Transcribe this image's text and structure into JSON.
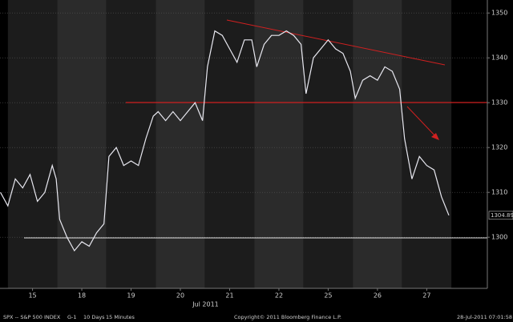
{
  "chart_data": {
    "type": "line",
    "x": [
      -0.15,
      0.0,
      0.15,
      0.3,
      0.45,
      0.6,
      0.75,
      0.9,
      0.98,
      1.05,
      1.2,
      1.35,
      1.5,
      1.65,
      1.8,
      1.95,
      2.05,
      2.2,
      2.35,
      2.5,
      2.65,
      2.8,
      2.95,
      3.05,
      3.2,
      3.35,
      3.5,
      3.65,
      3.8,
      3.95,
      4.05,
      4.2,
      4.35,
      4.5,
      4.65,
      4.8,
      4.95,
      5.05,
      5.2,
      5.35,
      5.5,
      5.65,
      5.8,
      5.95,
      6.05,
      6.2,
      6.35,
      6.5,
      6.65,
      6.8,
      6.95,
      7.05,
      7.2,
      7.35,
      7.5,
      7.65,
      7.8,
      7.95,
      8.05,
      8.2,
      8.35,
      8.5,
      8.65,
      8.8,
      8.95
    ],
    "series": [
      {
        "name": "SPX",
        "color": "#e8e8f0",
        "values": [
          1310,
          1307,
          1313,
          1311,
          1314,
          1308,
          1310,
          1316,
          1313,
          1304,
          1300,
          1297,
          1299,
          1298,
          1301,
          1303,
          1318,
          1320,
          1316,
          1317,
          1316,
          1322,
          1327,
          1328,
          1326,
          1328,
          1326,
          1328,
          1330,
          1326,
          1338,
          1346,
          1345,
          1342,
          1339,
          1344,
          1344,
          1338,
          1343,
          1345,
          1345,
          1346,
          1345,
          1343,
          1332,
          1340,
          1342,
          1344,
          1342,
          1341,
          1337,
          1331,
          1335,
          1336,
          1335,
          1338,
          1337,
          1333,
          1322,
          1313,
          1318,
          1316,
          1315,
          1309,
          1304.89
        ]
      }
    ],
    "last_price_label": "1304.89",
    "xlim": [
      -0.16,
      9.73
    ],
    "xticks": [
      {
        "value": 0.5,
        "label": "15"
      },
      {
        "value": 1.5,
        "label": "18"
      },
      {
        "value": 2.5,
        "label": "19"
      },
      {
        "value": 3.5,
        "label": "20"
      },
      {
        "value": 4.5,
        "label": "21"
      },
      {
        "value": 5.5,
        "label": "22"
      },
      {
        "value": 6.5,
        "label": "25"
      },
      {
        "value": 7.5,
        "label": "26"
      },
      {
        "value": 8.5,
        "label": "27"
      }
    ],
    "month_label": "Jul 2011",
    "ylim": [
      1288.6,
      1352.9
    ],
    "yticks": [
      1300,
      1310,
      1320,
      1330,
      1340,
      1350
    ],
    "grid": true,
    "footer": [
      "SPX -- S&P 500 INDEX",
      "G-1",
      "10 Days",
      "15 Minutes",
      "Copyright© 2011 Bloomberg Finance L.P.",
      "28-Jul-2011 07:01:58"
    ]
  }
}
